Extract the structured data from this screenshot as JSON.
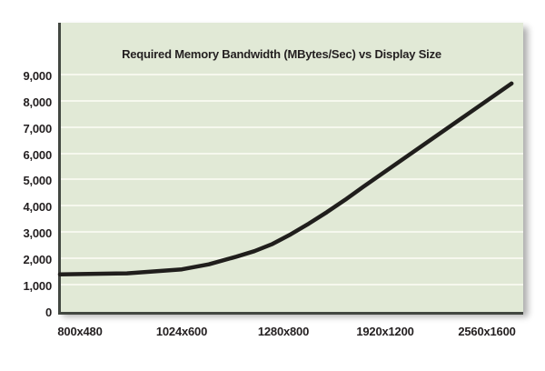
{
  "figure": {
    "page_bg": "#ffffff",
    "plot_bg": "#e1e9d6",
    "gridline_color": "#f6f8ee",
    "axis_color": "#424741",
    "text_color": "#231f20",
    "curve_color": "#201e1c"
  },
  "chart_data": {
    "type": "line",
    "title": "Required Memory Bandwidth (MBytes/Sec) vs Display Size",
    "categories": [
      "800x480",
      "1024x600",
      "1280x800",
      "1920x1200",
      "2560x1600"
    ],
    "values": [
      1440,
      1620,
      2800,
      5340,
      8040
    ],
    "curve_end_value": 8690,
    "xlabel": "Display Size",
    "ylabel": "Required Memory Bandwidth (MBytes/Sec)",
    "ylim": [
      0,
      11000
    ],
    "y_tick_step": 1000,
    "grid": true,
    "legend": false,
    "line_color": "#201e1c",
    "y_ticks": [
      {
        "label": "9,000",
        "value": 9000
      },
      {
        "label": "8,000",
        "value": 8000
      },
      {
        "label": "7,000",
        "value": 7000
      },
      {
        "label": "6,000",
        "value": 6000
      },
      {
        "label": "5,000",
        "value": 5000
      },
      {
        "label": "4,000",
        "value": 4000
      },
      {
        "label": "3,000",
        "value": 3000
      },
      {
        "label": "2,000",
        "value": 2000
      },
      {
        "label": "1,000",
        "value": 1000
      },
      {
        "label": "0",
        "value": 0
      }
    ],
    "curve_profile": [
      [
        0.004,
        1430
      ],
      [
        0.148,
        1465
      ],
      [
        0.266,
        1620
      ],
      [
        0.324,
        1810
      ],
      [
        0.383,
        2100
      ],
      [
        0.422,
        2310
      ],
      [
        0.461,
        2585
      ],
      [
        0.5,
        2950
      ],
      [
        0.539,
        3360
      ],
      [
        0.578,
        3795
      ],
      [
        0.617,
        4260
      ],
      [
        0.656,
        4760
      ],
      [
        0.975,
        8690
      ]
    ]
  }
}
